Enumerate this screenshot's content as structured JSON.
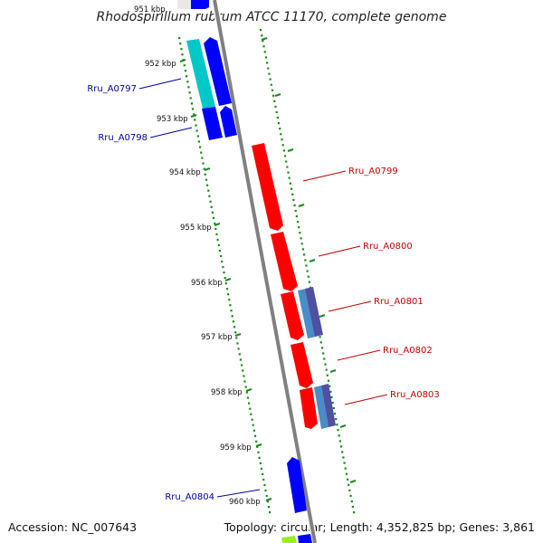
{
  "title": "Rhodospirillum rubrum ATCC 11170, complete genome",
  "accession": "Accession: NC_007643",
  "summary": "Topology: circular; Length: 4,352,825 bp; Genes: 3,861",
  "ticks": [
    "951 kbp",
    "952 kbp",
    "953 kbp",
    "954 kbp",
    "955 kbp",
    "956 kbp",
    "957 kbp",
    "958 kbp",
    "959 kbp",
    "960 kbp"
  ],
  "genes": [
    {
      "id": "Rru_A0797",
      "strand": "minus"
    },
    {
      "id": "Rru_A0798",
      "strand": "minus"
    },
    {
      "id": "Rru_A0799",
      "strand": "plus"
    },
    {
      "id": "Rru_A0800",
      "strand": "plus"
    },
    {
      "id": "Rru_A0801",
      "strand": "plus"
    },
    {
      "id": "Rru_A0802",
      "strand": "plus"
    },
    {
      "id": "Rru_A0803",
      "strand": "plus"
    },
    {
      "id": "Rru_A0804",
      "strand": "minus"
    }
  ],
  "colors": {
    "plus_cds": "#ff0000",
    "minus_cds": "#0000ff",
    "minus_feature": "#00c8c8",
    "plus_feature": "#5050a0",
    "plus_feature_light": "#4a8cc8",
    "backbone": "#808080",
    "tick": "#1a8a1a",
    "minus_label": "#0000a0",
    "plus_label": "#c80000"
  }
}
